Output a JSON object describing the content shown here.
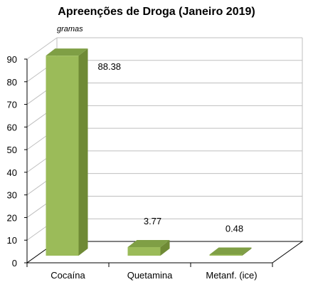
{
  "chart_data": {
    "type": "bar",
    "title": "Apreenções de Droga (Janeiro 2019)",
    "unit_label": "gramas",
    "categories": [
      "Cocaína",
      "Quetamina",
      "Metanf. (ice)"
    ],
    "values": [
      88.38,
      3.77,
      0.48
    ],
    "data_labels": [
      "88.38",
      "3.77",
      "0.48"
    ],
    "ylim": [
      0,
      90
    ],
    "yticks": [
      0,
      10,
      20,
      30,
      40,
      50,
      60,
      70,
      80,
      90
    ],
    "grid": true,
    "style": "3d-column",
    "colors": {
      "front": "#9bbb59",
      "side": "#6f8a35",
      "top": "#7f9f45",
      "grid": "#bfbfbf",
      "axis": "#000000"
    }
  }
}
